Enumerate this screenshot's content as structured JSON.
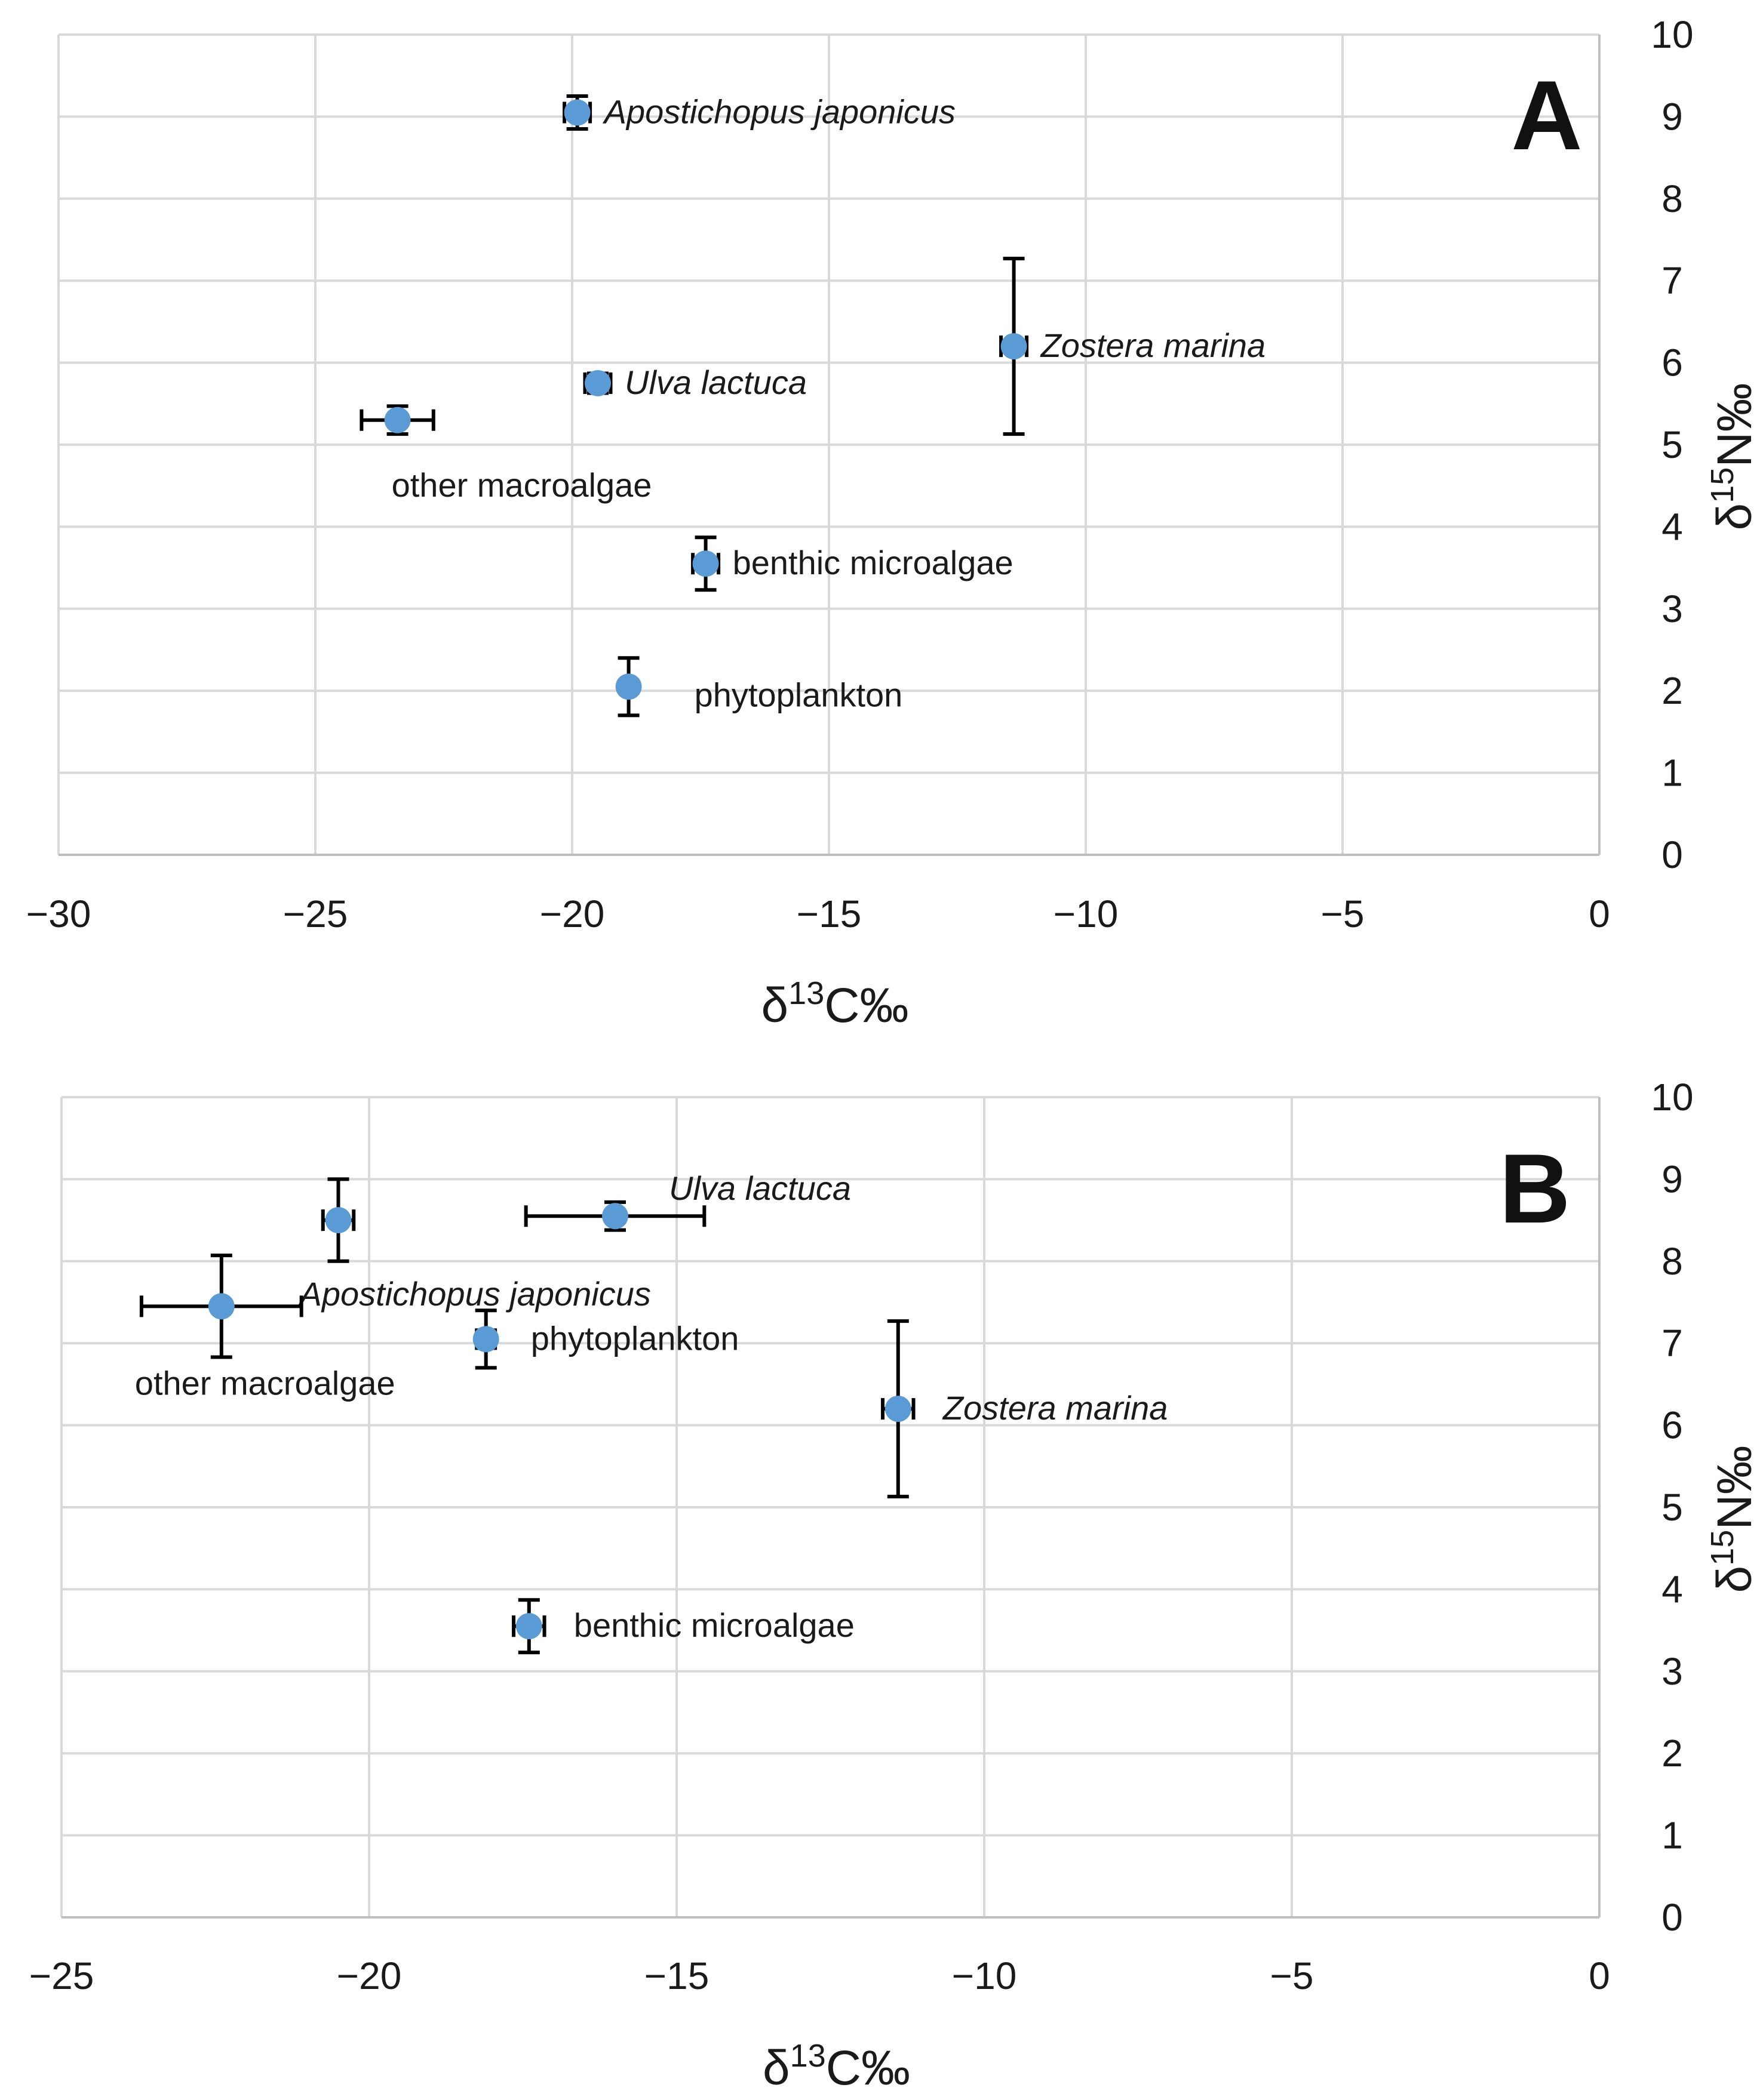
{
  "chart_data": [
    {
      "type": "scatter",
      "panel_label": "A",
      "xlabel": {
        "base": "δ",
        "sup": "13",
        "rest": "C‰"
      },
      "ylabel": {
        "base": "δ",
        "sup": "15",
        "rest": "N‰"
      },
      "xlim": [
        -30,
        0
      ],
      "ylim": [
        0,
        10
      ],
      "xticks": [
        -30,
        -25,
        -20,
        -15,
        -10,
        -5,
        0
      ],
      "yticks": [
        0,
        1,
        2,
        3,
        4,
        5,
        6,
        7,
        8,
        9,
        10
      ],
      "xtick_labels": [
        "−30",
        "−25",
        "−20",
        "−15",
        "−10",
        "−5",
        "0"
      ],
      "ytick_labels": [
        "0",
        "1",
        "2",
        "3",
        "4",
        "5",
        "6",
        "7",
        "8",
        "9",
        "10"
      ],
      "grid": true,
      "y_axis_side": "right",
      "marker_color": "#5b9bd5",
      "points": [
        {
          "label": "Apostichopus japonicus",
          "italic": true,
          "x": -19.9,
          "y": 9.05,
          "xerr": 0.25,
          "yerr": 0.2,
          "label_pos": "right"
        },
        {
          "label": "Zostera marina",
          "italic": true,
          "x": -11.4,
          "y": 6.2,
          "xerr": 0.25,
          "yerr": 1.07,
          "label_pos": "right"
        },
        {
          "label": "Ulva lactuca",
          "italic": true,
          "x": -19.5,
          "y": 5.75,
          "xerr": 0.25,
          "yerr": 0.12,
          "label_pos": "right"
        },
        {
          "label": "other macroalgae",
          "italic": false,
          "x": -23.4,
          "y": 5.3,
          "xerr": 0.7,
          "yerr": 0.17,
          "label_pos": "below-right"
        },
        {
          "label": "benthic microalgae",
          "italic": false,
          "x": -17.4,
          "y": 3.55,
          "xerr": 0.25,
          "yerr": 0.32,
          "label_pos": "right"
        },
        {
          "label": "phytoplankton",
          "italic": false,
          "x": -18.9,
          "y": 2.05,
          "xerr": 0.1,
          "yerr": 0.35,
          "label_pos": "right-far"
        }
      ]
    },
    {
      "type": "scatter",
      "panel_label": "B",
      "xlabel": {
        "base": "δ",
        "sup": "13",
        "rest": "C‰"
      },
      "ylabel": {
        "base": "δ",
        "sup": "15",
        "rest": "N‰"
      },
      "xlim": [
        -25,
        0
      ],
      "ylim": [
        0,
        10
      ],
      "xticks": [
        -25,
        -20,
        -15,
        -10,
        -5,
        0
      ],
      "yticks": [
        0,
        1,
        2,
        3,
        4,
        5,
        6,
        7,
        8,
        9,
        10
      ],
      "xtick_labels": [
        "−25",
        "−20",
        "−15",
        "−10",
        "−5",
        "0"
      ],
      "ytick_labels": [
        "0",
        "1",
        "2",
        "3",
        "4",
        "5",
        "6",
        "7",
        "8",
        "9",
        "10"
      ],
      "grid": true,
      "y_axis_side": "right",
      "marker_color": "#5b9bd5",
      "points": [
        {
          "label": "Apostichopus japonicus",
          "italic": true,
          "x": -20.5,
          "y": 8.5,
          "xerr": 0.25,
          "yerr": 0.5,
          "label_pos": "below"
        },
        {
          "label": "Ulva lactuca",
          "italic": true,
          "x": -16.0,
          "y": 8.55,
          "xerr": 1.45,
          "yerr": 0.17,
          "label_pos": "above-right"
        },
        {
          "label": "other macroalgae",
          "italic": false,
          "x": -22.4,
          "y": 7.45,
          "xerr": 1.3,
          "yerr": 0.62,
          "label_pos": "below"
        },
        {
          "label": "phytoplankton",
          "italic": false,
          "x": -18.1,
          "y": 7.05,
          "xerr": 0.15,
          "yerr": 0.35,
          "label_pos": "right"
        },
        {
          "label": "Zostera marina",
          "italic": true,
          "x": -11.4,
          "y": 6.2,
          "xerr": 0.25,
          "yerr": 1.07,
          "label_pos": "right"
        },
        {
          "label": "benthic microalgae",
          "italic": false,
          "x": -17.4,
          "y": 3.55,
          "xerr": 0.25,
          "yerr": 0.32,
          "label_pos": "right"
        }
      ]
    }
  ]
}
